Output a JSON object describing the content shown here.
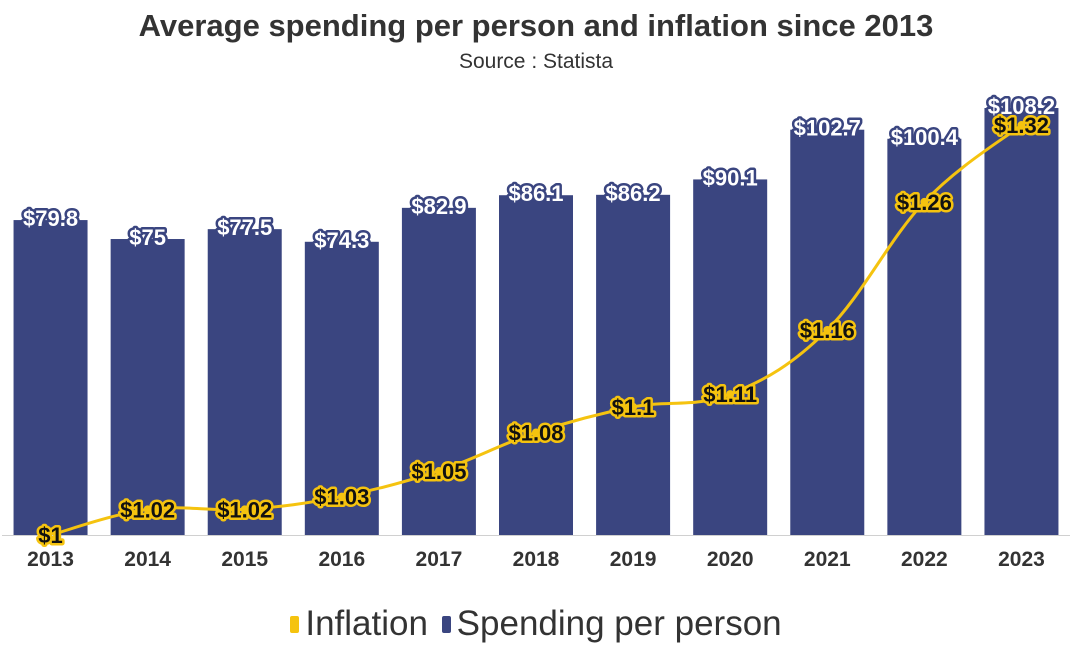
{
  "chart_data": {
    "type": "bar",
    "title": "Average spending per person and inflation since 2013",
    "subtitle": "Source : Statista",
    "categories": [
      "2013",
      "2014",
      "2015",
      "2016",
      "2017",
      "2018",
      "2019",
      "2020",
      "2021",
      "2022",
      "2023"
    ],
    "series": [
      {
        "name": "Spending per person",
        "type": "bar",
        "color": "#3a4580",
        "values": [
          79.8,
          75,
          77.5,
          74.3,
          82.9,
          86.1,
          86.2,
          90.1,
          102.7,
          100.4,
          108.2
        ],
        "labels": [
          "$79.8",
          "$75",
          "$77.5",
          "$74.3",
          "$82.9",
          "$86.1",
          "$86.2",
          "$90.1",
          "$102.7",
          "$100.4",
          "$108.2"
        ]
      },
      {
        "name": "Inflation",
        "type": "line",
        "color": "#f5c30f",
        "values": [
          1,
          1.02,
          1.02,
          1.03,
          1.05,
          1.08,
          1.1,
          1.11,
          1.16,
          1.26,
          1.32
        ],
        "labels": [
          "$1",
          "$1.02",
          "$1.02",
          "$1.03",
          "$1.05",
          "$1.08",
          "$1.1",
          "$1.11",
          "$1.16",
          "$1.26",
          "$1.32"
        ]
      }
    ],
    "bar_axis_range": [
      0,
      112
    ],
    "line_axis_range": [
      1,
      1.345
    ],
    "legend": [
      "Inflation",
      "Spending per person"
    ],
    "legend_position": "bottom"
  }
}
